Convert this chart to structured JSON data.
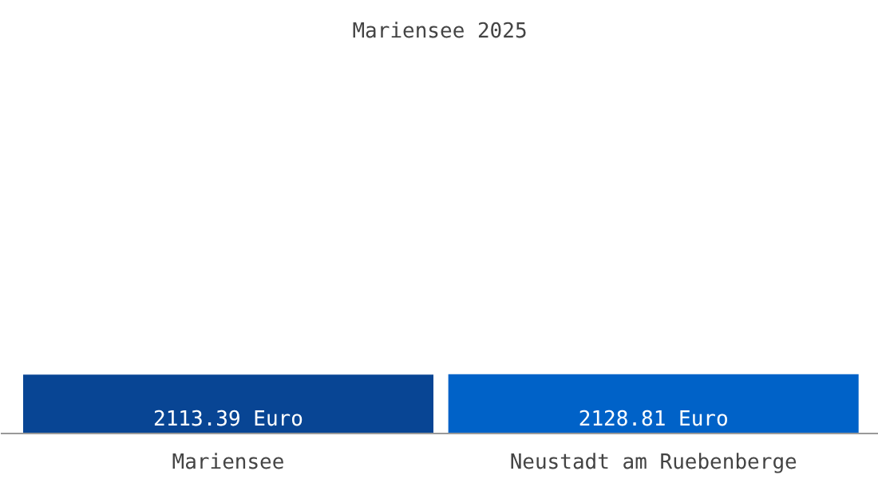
{
  "chart_data": {
    "type": "bar",
    "title": "Mariensee 2025",
    "categories": [
      "Mariensee",
      "Neustadt am Ruebenberge"
    ],
    "values": [
      2113.39,
      2128.81
    ],
    "colors": [
      "#084594",
      "#0062c8"
    ],
    "value_labels": [
      "2113.39 Euro",
      "2128.81 Euro"
    ]
  }
}
